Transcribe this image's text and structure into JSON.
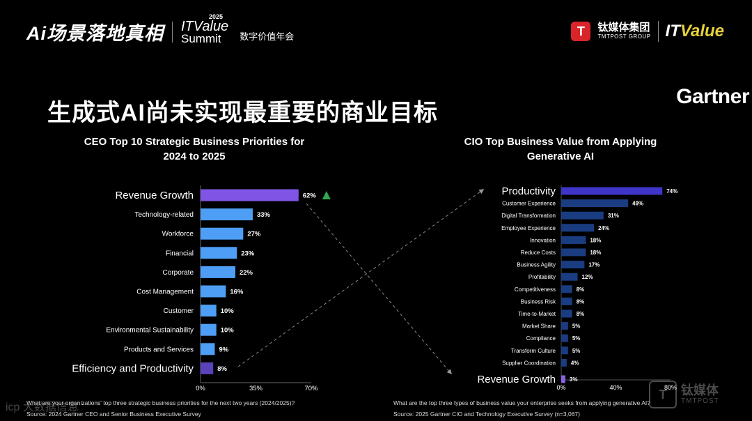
{
  "header": {
    "brand_ai": "Ai场景落地真相",
    "itvalue_top": "ITValue",
    "itvalue_year": "2025",
    "itvalue_summit": "Summit",
    "itvalue_cn": "数字价值年会",
    "tmtpost_logo_letter": "T",
    "tmtpost_cn": "钛媒体集团",
    "tmtpost_en": "TMTPOST GROUP",
    "itvalue_logo_it": "IT",
    "itvalue_logo_v": "Value"
  },
  "title": "生成式AI尚未实现最重要的商业目标",
  "gartner": "Gartner",
  "colors": {
    "left_top": "#8055e6",
    "left_mid": "#4f9ef5",
    "left_last": "#5a43b8",
    "right_top": "#3f35c8",
    "right_mid": "#1a3d82",
    "right_last": "#8a62e8",
    "triangle": "#2fa84f"
  },
  "chart_data": [
    {
      "type": "bar",
      "orientation": "horizontal",
      "title_line1": "CEO Top 10 Strategic Business Priorities for",
      "title_line2": "2024 to 2025",
      "categories": [
        "Revenue Growth",
        "Technology-related",
        "Workforce",
        "Financial",
        "Corporate",
        "Cost Management",
        "Customer",
        "Environmental Sustainability",
        "Products and Services",
        "Efficiency and Productivity"
      ],
      "values": [
        62,
        33,
        27,
        23,
        22,
        16,
        10,
        10,
        9,
        8
      ],
      "value_labels": [
        "62%",
        "33%",
        "27%",
        "23%",
        "22%",
        "16%",
        "10%",
        "10%",
        "9%",
        "8%"
      ],
      "xlim": [
        0,
        70
      ],
      "xticks": [
        0,
        35,
        70
      ],
      "xtick_labels": [
        "0%",
        "35%",
        "70%"
      ],
      "highlight": "Revenue Growth",
      "footnote_question": "What are your organizations' top three strategic business priorities for the next two years (2024/2025)?",
      "footnote_source": "Source: 2024 Gartner CEO and Senior Business Executive Survey"
    },
    {
      "type": "bar",
      "orientation": "horizontal",
      "title_line1": "CIO Top Business Value from Applying",
      "title_line2": "Generative AI",
      "categories": [
        "Productivity",
        "Customer Experience",
        "Digital Transformation",
        "Employee Experience",
        "Innovation",
        "Reduce Costs",
        "Business Agility",
        "Profitability",
        "Competitiveness",
        "Business Risk",
        "Time-to-Market",
        "Market Share",
        "Compliance",
        "Transform Culture",
        "Supplier Coordination",
        "Revenue Growth"
      ],
      "values": [
        74,
        49,
        31,
        24,
        18,
        18,
        17,
        12,
        8,
        8,
        8,
        5,
        5,
        5,
        4,
        3
      ],
      "value_labels": [
        "74%",
        "49%",
        "31%",
        "24%",
        "18%",
        "18%",
        "17%",
        "12%",
        "8%",
        "8%",
        "8%",
        "5%",
        "5%",
        "5%",
        "4%",
        "3%"
      ],
      "xlim": [
        0,
        80
      ],
      "xticks": [
        0,
        40,
        80
      ],
      "xtick_labels": [
        "0%",
        "40%",
        "80%"
      ],
      "footnote_question": "What are the top three types of business value your enterprise seeks from applying generative AI?",
      "footnote_source": "Source: 2025 Gartner CIO and Technology Executive Survey (n=3,067)"
    }
  ],
  "watermark_left": "icp 大数据信息",
  "watermark_right_logo": "T",
  "watermark_right_cn": "钛媒体",
  "watermark_right_en": "TMTPOST"
}
